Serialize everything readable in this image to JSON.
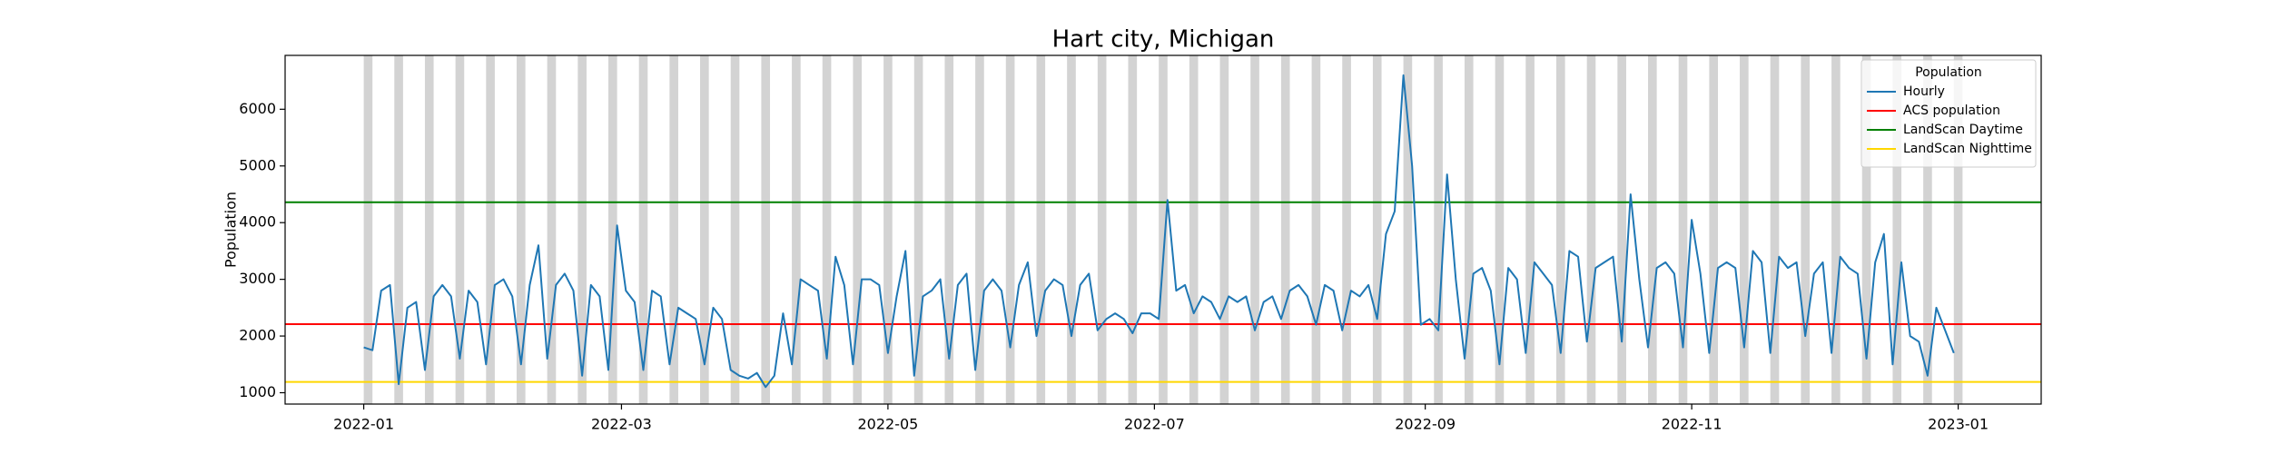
{
  "chart_data": {
    "type": "line",
    "title": "Hart city, Michigan",
    "y_label": "Population",
    "legend_title": "Population",
    "legend_position": "upper right",
    "weekend_shading": true,
    "shading_color": "#d3d3d3",
    "xlim": [
      "2021-12-14",
      "2023-01-20"
    ],
    "xticks": [
      "2022-01",
      "2022-03",
      "2022-05",
      "2022-07",
      "2022-09",
      "2022-11",
      "2023-01"
    ],
    "ylim": [
      800,
      6950
    ],
    "yticks": [
      1000,
      2000,
      3000,
      4000,
      5000,
      6000
    ],
    "x": [
      "2022-01-01",
      "2022-01-03",
      "2022-01-05",
      "2022-01-07",
      "2022-01-09",
      "2022-01-11",
      "2022-01-13",
      "2022-01-15",
      "2022-01-17",
      "2022-01-19",
      "2022-01-21",
      "2022-01-23",
      "2022-01-25",
      "2022-01-27",
      "2022-01-29",
      "2022-01-31",
      "2022-02-02",
      "2022-02-04",
      "2022-02-06",
      "2022-02-08",
      "2022-02-10",
      "2022-02-12",
      "2022-02-14",
      "2022-02-16",
      "2022-02-18",
      "2022-02-20",
      "2022-02-22",
      "2022-02-24",
      "2022-02-26",
      "2022-02-28",
      "2022-03-02",
      "2022-03-04",
      "2022-03-06",
      "2022-03-08",
      "2022-03-10",
      "2022-03-12",
      "2022-03-14",
      "2022-03-16",
      "2022-03-18",
      "2022-03-20",
      "2022-03-22",
      "2022-03-24",
      "2022-03-26",
      "2022-03-28",
      "2022-03-30",
      "2022-04-01",
      "2022-04-03",
      "2022-04-05",
      "2022-04-07",
      "2022-04-09",
      "2022-04-11",
      "2022-04-13",
      "2022-04-15",
      "2022-04-17",
      "2022-04-19",
      "2022-04-21",
      "2022-04-23",
      "2022-04-25",
      "2022-04-27",
      "2022-04-29",
      "2022-05-01",
      "2022-05-03",
      "2022-05-05",
      "2022-05-07",
      "2022-05-09",
      "2022-05-11",
      "2022-05-13",
      "2022-05-15",
      "2022-05-17",
      "2022-05-19",
      "2022-05-21",
      "2022-05-23",
      "2022-05-25",
      "2022-05-27",
      "2022-05-29",
      "2022-05-31",
      "2022-06-02",
      "2022-06-04",
      "2022-06-06",
      "2022-06-08",
      "2022-06-10",
      "2022-06-12",
      "2022-06-14",
      "2022-06-16",
      "2022-06-18",
      "2022-06-20",
      "2022-06-22",
      "2022-06-24",
      "2022-06-26",
      "2022-06-28",
      "2022-06-30",
      "2022-07-02",
      "2022-07-04",
      "2022-07-06",
      "2022-07-08",
      "2022-07-10",
      "2022-07-12",
      "2022-07-14",
      "2022-07-16",
      "2022-07-18",
      "2022-07-20",
      "2022-07-22",
      "2022-07-24",
      "2022-07-26",
      "2022-07-28",
      "2022-07-30",
      "2022-08-01",
      "2022-08-03",
      "2022-08-05",
      "2022-08-07",
      "2022-08-09",
      "2022-08-11",
      "2022-08-13",
      "2022-08-15",
      "2022-08-17",
      "2022-08-19",
      "2022-08-21",
      "2022-08-23",
      "2022-08-25",
      "2022-08-27",
      "2022-08-29",
      "2022-08-31",
      "2022-09-02",
      "2022-09-04",
      "2022-09-06",
      "2022-09-08",
      "2022-09-10",
      "2022-09-12",
      "2022-09-14",
      "2022-09-16",
      "2022-09-18",
      "2022-09-20",
      "2022-09-22",
      "2022-09-24",
      "2022-09-26",
      "2022-09-28",
      "2022-09-30",
      "2022-10-02",
      "2022-10-04",
      "2022-10-06",
      "2022-10-08",
      "2022-10-10",
      "2022-10-12",
      "2022-10-14",
      "2022-10-16",
      "2022-10-18",
      "2022-10-20",
      "2022-10-22",
      "2022-10-24",
      "2022-10-26",
      "2022-10-28",
      "2022-10-30",
      "2022-11-01",
      "2022-11-03",
      "2022-11-05",
      "2022-11-07",
      "2022-11-09",
      "2022-11-11",
      "2022-11-13",
      "2022-11-15",
      "2022-11-17",
      "2022-11-19",
      "2022-11-21",
      "2022-11-23",
      "2022-11-25",
      "2022-11-27",
      "2022-11-29",
      "2022-12-01",
      "2022-12-03",
      "2022-12-05",
      "2022-12-07",
      "2022-12-09",
      "2022-12-11",
      "2022-12-13",
      "2022-12-15",
      "2022-12-17",
      "2022-12-19",
      "2022-12-21",
      "2022-12-23",
      "2022-12-25",
      "2022-12-27",
      "2022-12-29",
      "2022-12-31"
    ],
    "series": [
      {
        "name": "Hourly",
        "color": "#1f77b4",
        "values": [
          1800,
          1750,
          2800,
          2900,
          1150,
          2500,
          2600,
          1400,
          2700,
          2900,
          2700,
          1600,
          2800,
          2600,
          1500,
          2900,
          3000,
          2700,
          1500,
          2900,
          3600,
          1600,
          2900,
          3100,
          2800,
          1300,
          2900,
          2700,
          1400,
          3950,
          2800,
          2600,
          1400,
          2800,
          2700,
          1500,
          2500,
          2400,
          2300,
          1500,
          2500,
          2300,
          1400,
          1300,
          1250,
          1350,
          1100,
          1300,
          2400,
          1500,
          3000,
          2900,
          2800,
          1600,
          3400,
          2900,
          1500,
          3000,
          3000,
          2900,
          1700,
          2700,
          3500,
          1300,
          2700,
          2800,
          3000,
          1600,
          2900,
          3100,
          1400,
          2800,
          3000,
          2800,
          1800,
          2900,
          3300,
          2000,
          2800,
          3000,
          2900,
          2000,
          2900,
          3100,
          2100,
          2300,
          2400,
          2300,
          2050,
          2400,
          2400,
          2300,
          4400,
          2800,
          2900,
          2400,
          2700,
          2600,
          2300,
          2700,
          2600,
          2700,
          2100,
          2600,
          2700,
          2300,
          2800,
          2900,
          2700,
          2200,
          2900,
          2800,
          2100,
          2800,
          2700,
          2900,
          2300,
          3800,
          4200,
          6600,
          5000,
          2200,
          2300,
          2100,
          4850,
          3000,
          1600,
          3100,
          3200,
          2800,
          1500,
          3200,
          3000,
          1700,
          3300,
          3100,
          2900,
          1700,
          3500,
          3400,
          1900,
          3200,
          3300,
          3400,
          1900,
          4500,
          3000,
          1800,
          3200,
          3300,
          3100,
          1800,
          4050,
          3100,
          1700,
          3200,
          3300,
          3200,
          1800,
          3500,
          3300,
          1700,
          3400,
          3200,
          3300,
          2000,
          3100,
          3300,
          1700,
          3400,
          3200,
          3100,
          1600,
          3300,
          3800,
          1500,
          3300,
          2000,
          1900,
          1300,
          2500,
          2100,
          1700
        ]
      }
    ],
    "reference_lines": [
      {
        "name": "ACS population",
        "color": "#ff0000",
        "value": 2210
      },
      {
        "name": "LandScan Daytime",
        "color": "#008000",
        "value": 4360
      },
      {
        "name": "LandScan Nighttime",
        "color": "#ffd700",
        "value": 1190
      }
    ]
  }
}
